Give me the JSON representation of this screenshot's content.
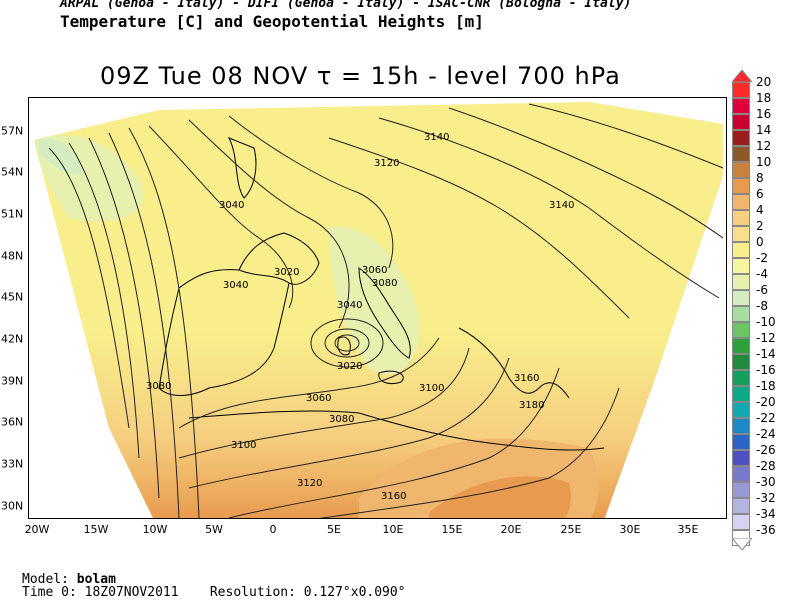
{
  "header": {
    "credits": "ARPAL (Genoa - Italy)  -  DIFI (Genoa - Italy)  -  ISAC-CNR (Bologna - Italy)",
    "title": "Temperature [C] and Geopotential Heights [m]",
    "subtitle": "09Z Tue 08 NOV  τ = 15h  -  level 700 hPa"
  },
  "axes": {
    "lat_labels": [
      "57N",
      "54N",
      "51N",
      "48N",
      "45N",
      "42N",
      "39N",
      "36N",
      "33N",
      "30N"
    ],
    "lon_labels": [
      "20W",
      "15W",
      "10W",
      "5W",
      "0",
      "5E",
      "10E",
      "15E",
      "20E",
      "25E",
      "30E",
      "35E"
    ]
  },
  "legend": {
    "labels": [
      "20",
      "18",
      "16",
      "14",
      "12",
      "10",
      "8",
      "6",
      "4",
      "2",
      "0",
      "-2",
      "-4",
      "-6",
      "-8",
      "-10",
      "-12",
      "-14",
      "-16",
      "-18",
      "-20",
      "-22",
      "-24",
      "-26",
      "-28",
      "-30",
      "-32",
      "-34",
      "-36"
    ],
    "colors": [
      "#ff2a2a",
      "#e0003c",
      "#c80032",
      "#9b1e1e",
      "#8b5a2b",
      "#c8823c",
      "#e89a4e",
      "#f0b66e",
      "#f6cf80",
      "#f8e08a",
      "#f8ee8c",
      "#f6f6a0",
      "#e8f0b0",
      "#d4ecc0",
      "#a8dca0",
      "#6cc464",
      "#2ca23c",
      "#1e8c3c",
      "#14a05a",
      "#10a888",
      "#14a8b0",
      "#1e88c8",
      "#2c64c8",
      "#5050c0",
      "#7878cc",
      "#9898d4",
      "#b4b4e0",
      "#d4d4f0",
      "#ffffff"
    ]
  },
  "chart_data": {
    "type": "heatmap",
    "title": "Temperature [C] and Geopotential Heights [m]",
    "level": "700 hPa",
    "valid_time": "09Z Tue 08 NOV",
    "forecast_step": "15h",
    "lon_range": [
      "20W",
      "35E"
    ],
    "lat_range": [
      "30N",
      "57N"
    ],
    "color_scale_range": [
      -36,
      20
    ],
    "contour_labels": [
      {
        "value": 3140,
        "lon": 16,
        "lat": 57
      },
      {
        "value": 3120,
        "lon": 10,
        "lat": 55
      },
      {
        "value": 3140,
        "lon": 25,
        "lat": 51
      },
      {
        "value": 3040,
        "lon": -3,
        "lat": 51
      },
      {
        "value": 3020,
        "lon": 1,
        "lat": 47.5
      },
      {
        "value": 3060,
        "lon": 8.5,
        "lat": 46.5
      },
      {
        "value": 3080,
        "lon": 9.5,
        "lat": 45.5
      },
      {
        "value": 3040,
        "lon": -3.5,
        "lat": 45.5
      },
      {
        "value": 3040,
        "lon": 7,
        "lat": 44
      },
      {
        "value": 3020,
        "lon": 6,
        "lat": 40
      },
      {
        "value": 3080,
        "lon": -10,
        "lat": 39
      },
      {
        "value": 3100,
        "lon": 13.5,
        "lat": 39
      },
      {
        "value": 3160,
        "lon": 21,
        "lat": 39.5
      },
      {
        "value": 3060,
        "lon": 3.5,
        "lat": 38
      },
      {
        "value": 3180,
        "lon": 22,
        "lat": 37.5
      },
      {
        "value": 3080,
        "lon": 5.5,
        "lat": 36.5
      },
      {
        "value": 3100,
        "lon": -2.5,
        "lat": 34
      },
      {
        "value": 3120,
        "lon": 3,
        "lat": 31.5
      },
      {
        "value": 3160,
        "lon": 10.5,
        "lat": 30.5
      }
    ]
  },
  "footer": {
    "model_label": "Model:",
    "model": "bolam",
    "time_label": "Time 0:",
    "time0": "18Z07NOV2011",
    "resolution_label": "Resolution:",
    "resolution": "0.127°x0.090°"
  }
}
